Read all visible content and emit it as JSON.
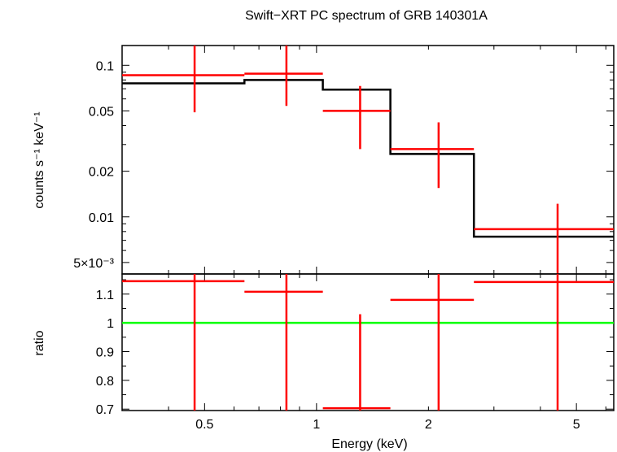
{
  "chart_data": [
    {
      "type": "line",
      "panel": "spectrum",
      "title": "Swift−XRT PC spectrum of GRB 140301A",
      "xlabel": "",
      "ylabel": "counts s⁻¹ keV⁻¹",
      "yscale": "log",
      "xscale": "log",
      "xlim": [
        0.3,
        6.3
      ],
      "ylim": [
        0.0042,
        0.135
      ],
      "y_ticks": [
        {
          "value": 0.1,
          "label": "0.1"
        },
        {
          "value": 0.05,
          "label": "0.05"
        },
        {
          "value": 0.02,
          "label": "0.02"
        },
        {
          "value": 0.01,
          "label": "0.01"
        },
        {
          "value": 0.005,
          "label": "5×10⁻³"
        }
      ],
      "data_color": "#ff0000",
      "model_color": "#000000",
      "data": [
        {
          "xlo": 0.3,
          "xhi": 0.64,
          "x": 0.47,
          "y": 0.086,
          "ylo": 0.049,
          "yhi": 0.137
        },
        {
          "xlo": 0.64,
          "xhi": 1.04,
          "x": 0.83,
          "y": 0.088,
          "ylo": 0.054,
          "yhi": 0.137
        },
        {
          "xlo": 1.04,
          "xhi": 1.58,
          "x": 1.31,
          "y": 0.05,
          "ylo": 0.028,
          "yhi": 0.073
        },
        {
          "xlo": 1.58,
          "xhi": 2.65,
          "x": 2.13,
          "y": 0.028,
          "ylo": 0.0155,
          "yhi": 0.042
        },
        {
          "xlo": 2.65,
          "xhi": 6.3,
          "x": 4.45,
          "y": 0.0083,
          "ylo": 0.0042,
          "yhi": 0.0122
        }
      ],
      "model": [
        {
          "xlo": 0.3,
          "xhi": 0.64,
          "y": 0.076
        },
        {
          "xlo": 0.64,
          "xhi": 1.04,
          "y": 0.08
        },
        {
          "xlo": 1.04,
          "xhi": 1.58,
          "y": 0.069
        },
        {
          "xlo": 1.58,
          "xhi": 2.65,
          "y": 0.026
        },
        {
          "xlo": 2.65,
          "xhi": 6.3,
          "y": 0.0074
        }
      ]
    },
    {
      "type": "scatter",
      "panel": "ratio",
      "xlabel": "Energy (keV)",
      "ylabel": "ratio",
      "xscale": "log",
      "xlim": [
        0.3,
        6.3
      ],
      "ylim": [
        0.695,
        1.17
      ],
      "y_ticks": [
        {
          "value": 1.1,
          "label": "1.1"
        },
        {
          "value": 1.0,
          "label": "1"
        },
        {
          "value": 0.9,
          "label": "0.9"
        },
        {
          "value": 0.8,
          "label": "0.8"
        },
        {
          "value": 0.7,
          "label": "0.7"
        }
      ],
      "x_ticks": [
        {
          "value": 0.5,
          "label": "0.5"
        },
        {
          "value": 1,
          "label": "1"
        },
        {
          "value": 2,
          "label": "2"
        },
        {
          "value": 5,
          "label": "5"
        }
      ],
      "reference_line": {
        "y": 1.0,
        "color": "#00ff00"
      },
      "data_color": "#ff0000",
      "data": [
        {
          "xlo": 0.3,
          "xhi": 0.64,
          "x": 0.47,
          "y": 1.145,
          "ylo": 0.695,
          "yhi": 1.17
        },
        {
          "xlo": 0.64,
          "xhi": 1.04,
          "x": 0.83,
          "y": 1.108,
          "ylo": 0.695,
          "yhi": 1.17
        },
        {
          "xlo": 1.04,
          "xhi": 1.58,
          "x": 1.31,
          "y": 0.703,
          "ylo": 0.695,
          "yhi": 1.03
        },
        {
          "xlo": 1.58,
          "xhi": 2.65,
          "x": 2.13,
          "y": 1.08,
          "ylo": 0.695,
          "yhi": 1.17
        },
        {
          "xlo": 2.65,
          "xhi": 6.3,
          "x": 4.45,
          "y": 1.142,
          "ylo": 0.695,
          "yhi": 1.17
        }
      ]
    }
  ]
}
